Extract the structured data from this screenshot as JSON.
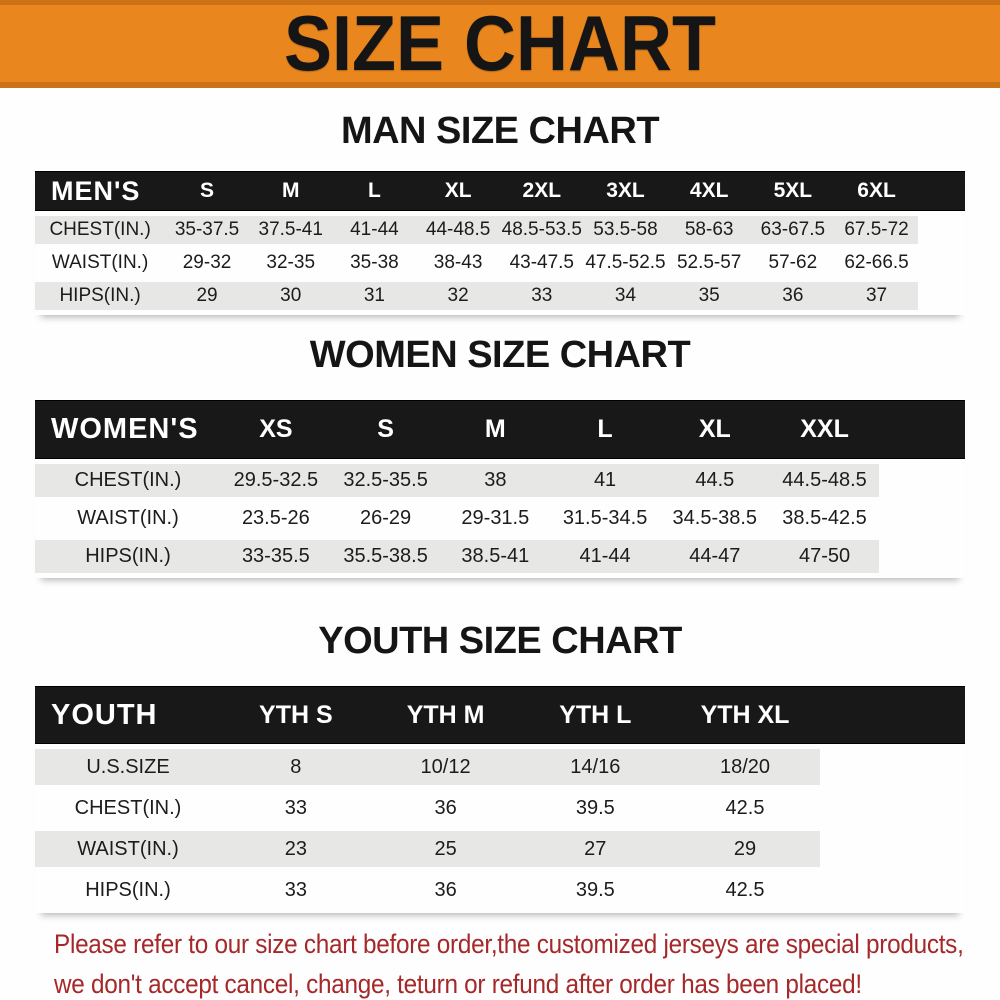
{
  "banner": {
    "title": "SIZE CHART"
  },
  "chart_data": [
    {
      "type": "table",
      "title": "MAN SIZE CHART",
      "corner_label": "MEN'S",
      "columns": [
        "S",
        "M",
        "L",
        "XL",
        "2XL",
        "3XL",
        "4XL",
        "5XL",
        "6XL"
      ],
      "rows": [
        {
          "label": "CHEST(IN.)",
          "values": [
            "35-37.5",
            "37.5-41",
            "41-44",
            "44-48.5",
            "48.5-53.5",
            "53.5-58",
            "58-63",
            "63-67.5",
            "67.5-72"
          ]
        },
        {
          "label": "WAIST(IN.)",
          "values": [
            "29-32",
            "32-35",
            "35-38",
            "38-43",
            "43-47.5",
            "47.5-52.5",
            "52.5-57",
            "57-62",
            "62-66.5"
          ]
        },
        {
          "label": "HIPS(IN.)",
          "values": [
            "29",
            "30",
            "31",
            "32",
            "33",
            "34",
            "35",
            "36",
            "37"
          ]
        }
      ],
      "col_widths_pct": [
        14,
        9,
        9,
        9,
        9,
        9,
        9,
        9,
        9,
        9,
        5
      ]
    },
    {
      "type": "table",
      "title": "WOMEN SIZE CHART",
      "corner_label": "WOMEN'S",
      "columns": [
        "XS",
        "S",
        "M",
        "L",
        "XL",
        "XXL"
      ],
      "rows": [
        {
          "label": "CHEST(IN.)",
          "values": [
            "29.5-32.5",
            "32.5-35.5",
            "38",
            "41",
            "44.5",
            "44.5-48.5"
          ]
        },
        {
          "label": "WAIST(IN.)",
          "values": [
            "23.5-26",
            "26-29",
            "29-31.5",
            "31.5-34.5",
            "34.5-38.5",
            "38.5-42.5"
          ]
        },
        {
          "label": "HIPS(IN.)",
          "values": [
            "33-35.5",
            "35.5-38.5",
            "38.5-41",
            "41-44",
            "44-47",
            "47-50"
          ]
        }
      ],
      "col_widths_pct": [
        20,
        11.8,
        11.8,
        11.8,
        11.8,
        11.8,
        11.8,
        9.2
      ]
    },
    {
      "type": "table",
      "title": "YOUTH SIZE CHART",
      "corner_label": "YOUTH",
      "columns": [
        "YTH S",
        "YTH M",
        "YTH L",
        "YTH XL"
      ],
      "rows": [
        {
          "label": "U.S.SIZE",
          "values": [
            "8",
            "10/12",
            "14/16",
            "18/20"
          ]
        },
        {
          "label": "CHEST(IN.)",
          "values": [
            "33",
            "36",
            "39.5",
            "42.5"
          ]
        },
        {
          "label": "WAIST(IN.)",
          "values": [
            "23",
            "25",
            "27",
            "29"
          ]
        },
        {
          "label": "HIPS(IN.)",
          "values": [
            "33",
            "36",
            "39.5",
            "42.5"
          ]
        }
      ],
      "col_widths_pct": [
        20,
        16.1,
        16.1,
        16.1,
        16.1,
        15.6
      ]
    }
  ],
  "footer": {
    "lines": [
      "Please refer to our size chart before order,the customized jerseys are special products,",
      "we don't accept cancel, change, teturn or refund after order has been placed!"
    ]
  },
  "colors": {
    "banner_bg": "#e9861e",
    "banner_border": "#cd7117",
    "header_bar_bg": "#181818",
    "header_bar_text": "#ffffff",
    "row_shaded_bg": "#e7e7e5",
    "table_text": "#1c1c1c",
    "title_text": "#151515",
    "footer_text": "#a5282a"
  }
}
